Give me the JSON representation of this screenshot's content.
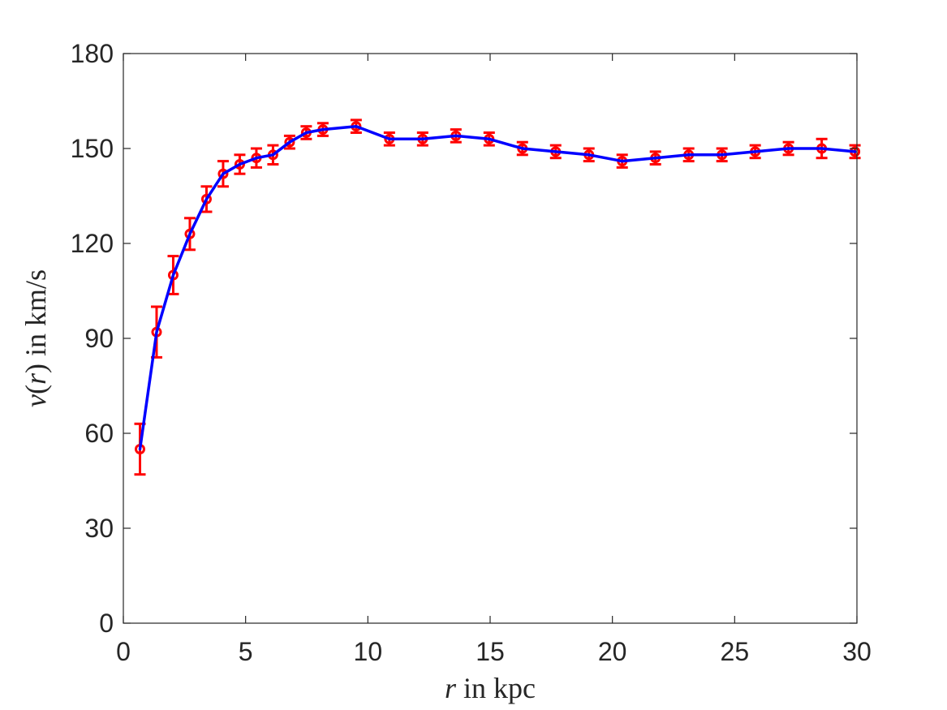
{
  "chart_data": {
    "type": "line",
    "xlabel_var": "r",
    "xlabel_rest": " in kpc",
    "ylabel_var_v": "v",
    "ylabel_var_r": "r",
    "ylabel_open": "(",
    "ylabel_close": ")",
    "ylabel_rest": " in km/s",
    "xlim": [
      0,
      30
    ],
    "ylim": [
      0,
      180
    ],
    "xticks": [
      0,
      5,
      10,
      15,
      20,
      25,
      30
    ],
    "yticks": [
      0,
      30,
      60,
      90,
      120,
      150,
      180
    ],
    "grid": false,
    "line_color": "#0000ff",
    "marker_color": "#ff0000",
    "series": [
      {
        "style": "line",
        "x": [
          0.68,
          1.36,
          2.04,
          2.72,
          3.4,
          4.08,
          4.76,
          5.44,
          6.12,
          6.8,
          7.48,
          8.16,
          9.52,
          10.88,
          12.24,
          13.6,
          14.96,
          16.32,
          17.68,
          19.04,
          20.4,
          21.76,
          23.12,
          24.48,
          25.84,
          27.2,
          28.56,
          29.92
        ],
        "y": [
          55,
          92,
          110,
          123,
          134,
          142,
          145,
          147,
          148,
          152,
          155,
          156,
          157,
          153,
          153,
          154,
          153,
          150,
          149,
          148,
          146,
          147,
          148,
          148,
          149,
          150,
          150,
          149
        ]
      },
      {
        "style": "errorbar",
        "x": [
          0.68,
          1.36,
          2.04,
          2.72,
          3.4,
          4.08,
          4.76,
          5.44,
          6.12,
          6.8,
          7.48,
          8.16,
          9.52,
          10.88,
          12.24,
          13.6,
          14.96,
          16.32,
          17.68,
          19.04,
          20.4,
          21.76,
          23.12,
          24.48,
          25.84,
          27.2,
          28.56,
          29.92
        ],
        "y": [
          55,
          92,
          110,
          123,
          134,
          142,
          145,
          147,
          148,
          152,
          155,
          156,
          157,
          153,
          153,
          154,
          153,
          150,
          149,
          148,
          146,
          147,
          148,
          148,
          149,
          150,
          150,
          149
        ],
        "err": [
          8,
          8,
          6,
          5,
          4,
          4,
          3,
          3,
          3,
          2,
          2,
          2,
          2,
          2,
          2,
          2,
          2,
          2,
          2,
          2,
          2,
          2,
          2,
          2,
          2,
          2,
          3,
          2
        ]
      }
    ]
  }
}
